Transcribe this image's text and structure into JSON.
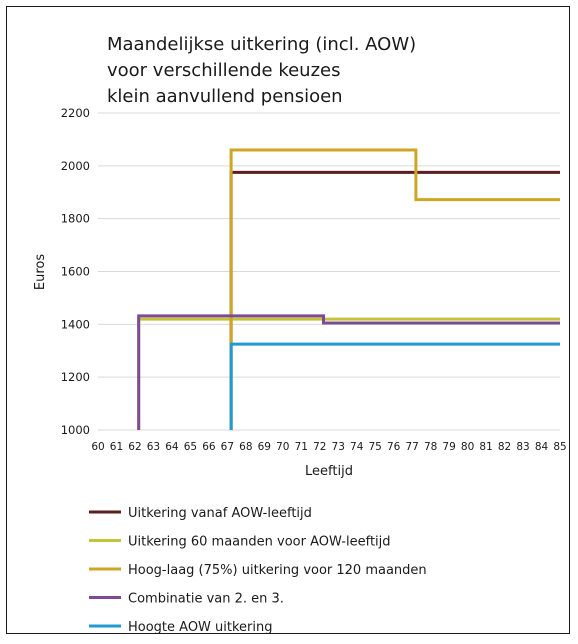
{
  "chart_data": {
    "type": "line",
    "title_lines": [
      "Maandelijkse uitkering (incl. AOW)",
      "voor verschillende keuzes",
      "klein aanvullend pensioen"
    ],
    "xlabel": "Leeftijd",
    "ylabel": "Euros",
    "ylim": [
      1000,
      2200
    ],
    "yticks": [
      "1000",
      "1200",
      "1400",
      "1600",
      "1800",
      "2000",
      "2200"
    ],
    "xlim": [
      60,
      85
    ],
    "xticks": [
      "60",
      "61",
      "62",
      "63",
      "64",
      "65",
      "66",
      "67",
      "68",
      "69",
      "70",
      "71",
      "72",
      "73",
      "74",
      "75",
      "76",
      "77",
      "78",
      "79",
      "80",
      "81",
      "82",
      "83",
      "84",
      "85"
    ],
    "grid": "horizontal",
    "legend_position": "bottom",
    "series": [
      {
        "name": "Uitkering vanaf AOW-leeftijd",
        "color": "#5c1d1d",
        "points": [
          [
            67.2,
            1000
          ],
          [
            67.2,
            1975
          ],
          [
            85,
            1975
          ]
        ]
      },
      {
        "name": "Uitkering 60 maanden voor AOW-leeftijd",
        "color": "#c3c33a",
        "points": [
          [
            62.2,
            1000
          ],
          [
            62.2,
            1420
          ],
          [
            85,
            1420
          ]
        ]
      },
      {
        "name": "Hoog-laag (75%) uitkering voor 120 maanden",
        "color": "#cfa525",
        "points": [
          [
            67.2,
            1000
          ],
          [
            67.2,
            2060
          ],
          [
            77.2,
            2060
          ],
          [
            77.2,
            1872
          ],
          [
            85,
            1872
          ]
        ]
      },
      {
        "name": "Combinatie van 2. en 3.",
        "color": "#7d4b94",
        "points": [
          [
            62.2,
            1000
          ],
          [
            62.2,
            1432
          ],
          [
            72.2,
            1432
          ],
          [
            72.2,
            1405
          ],
          [
            85,
            1405
          ]
        ]
      },
      {
        "name": "Hoogte AOW uitkering",
        "color": "#1f9bd1",
        "points": [
          [
            67.2,
            1000
          ],
          [
            67.2,
            1325
          ],
          [
            85,
            1325
          ]
        ]
      }
    ]
  }
}
